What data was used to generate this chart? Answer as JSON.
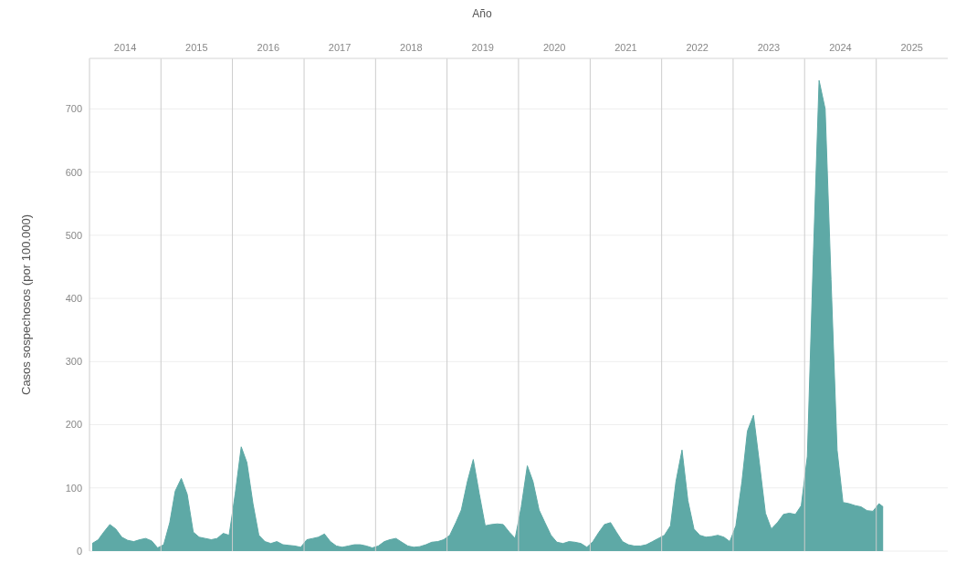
{
  "chart_data": {
    "type": "area",
    "xlabel": "Año",
    "ylabel": "Casos sospechosos (por 100.000)",
    "x": [
      "2014-01-15",
      "2014-02-15",
      "2014-03-15",
      "2014-04-15",
      "2014-05-15",
      "2014-06-15",
      "2014-07-15",
      "2014-08-15",
      "2014-09-15",
      "2014-10-15",
      "2014-11-15",
      "2014-12-15",
      "2015-01-15",
      "2015-02-15",
      "2015-03-15",
      "2015-04-15",
      "2015-05-15",
      "2015-06-15",
      "2015-07-15",
      "2015-08-15",
      "2015-09-15",
      "2015-10-15",
      "2015-11-15",
      "2015-12-15",
      "2016-01-15",
      "2016-02-15",
      "2016-03-15",
      "2016-04-15",
      "2016-05-15",
      "2016-06-15",
      "2016-07-15",
      "2016-08-15",
      "2016-09-15",
      "2016-10-15",
      "2016-11-15",
      "2016-12-15",
      "2017-01-15",
      "2017-02-15",
      "2017-03-15",
      "2017-04-15",
      "2017-05-15",
      "2017-06-15",
      "2017-07-15",
      "2017-08-15",
      "2017-09-15",
      "2017-10-15",
      "2017-11-15",
      "2017-12-15",
      "2018-01-15",
      "2018-02-15",
      "2018-03-15",
      "2018-04-15",
      "2018-05-15",
      "2018-06-15",
      "2018-07-15",
      "2018-08-15",
      "2018-09-15",
      "2018-10-15",
      "2018-11-15",
      "2018-12-15",
      "2019-01-15",
      "2019-02-15",
      "2019-03-15",
      "2019-04-15",
      "2019-05-15",
      "2019-06-15",
      "2019-07-15",
      "2019-08-15",
      "2019-09-15",
      "2019-10-15",
      "2019-11-15",
      "2019-12-15",
      "2020-01-15",
      "2020-02-15",
      "2020-03-15",
      "2020-04-15",
      "2020-05-15",
      "2020-06-15",
      "2020-07-15",
      "2020-08-15",
      "2020-09-15",
      "2020-10-15",
      "2020-11-15",
      "2020-12-15",
      "2021-01-15",
      "2021-02-15",
      "2021-03-15",
      "2021-04-15",
      "2021-05-15",
      "2021-06-15",
      "2021-07-15",
      "2021-08-15",
      "2021-09-15",
      "2021-10-15",
      "2021-11-15",
      "2021-12-15",
      "2022-01-15",
      "2022-02-15",
      "2022-03-15",
      "2022-04-15",
      "2022-05-15",
      "2022-06-15",
      "2022-07-15",
      "2022-08-15",
      "2022-09-15",
      "2022-10-15",
      "2022-11-15",
      "2022-12-15",
      "2023-01-15",
      "2023-02-15",
      "2023-03-15",
      "2023-04-15",
      "2023-05-15",
      "2023-06-15",
      "2023-07-15",
      "2023-08-15",
      "2023-09-15",
      "2023-10-15",
      "2023-11-15",
      "2023-12-15",
      "2024-01-15",
      "2024-02-15",
      "2024-03-15",
      "2024-04-15",
      "2024-05-15",
      "2024-06-15",
      "2024-07-15",
      "2024-08-15",
      "2024-09-15",
      "2024-10-15",
      "2024-11-15",
      "2024-12-15",
      "2025-01-15",
      "2025-02-05"
    ],
    "series": [
      {
        "color": "#5ea9a6",
        "values": [
          12,
          18,
          30,
          42,
          35,
          22,
          17,
          15,
          18,
          20,
          16,
          5,
          10,
          45,
          95,
          115,
          90,
          30,
          22,
          20,
          18,
          20,
          28,
          25,
          90,
          165,
          140,
          75,
          25,
          15,
          12,
          15,
          10,
          9,
          8,
          6,
          18,
          20,
          22,
          27,
          15,
          8,
          6,
          8,
          10,
          10,
          8,
          5,
          8,
          15,
          18,
          20,
          14,
          8,
          6,
          7,
          10,
          14,
          15,
          18,
          25,
          45,
          65,
          110,
          145,
          90,
          40,
          42,
          43,
          42,
          30,
          20,
          70,
          135,
          110,
          65,
          45,
          25,
          14,
          12,
          15,
          14,
          12,
          6,
          15,
          30,
          42,
          45,
          30,
          15,
          10,
          8,
          8,
          10,
          15,
          20,
          25,
          40,
          110,
          160,
          80,
          35,
          25,
          22,
          23,
          25,
          22,
          15,
          40,
          110,
          190,
          215,
          140,
          60,
          35,
          45,
          58,
          60,
          58,
          72,
          150,
          470,
          745,
          700,
          430,
          160,
          77,
          75,
          72,
          70,
          64,
          63,
          75,
          70
        ]
      }
    ],
    "xlim": [
      "2014-01-01",
      "2026-01-01"
    ],
    "xticks": [
      {
        "value": "2014-07-02",
        "label": "2014"
      },
      {
        "value": "2015-07-02",
        "label": "2015"
      },
      {
        "value": "2016-07-02",
        "label": "2016"
      },
      {
        "value": "2017-07-02",
        "label": "2017"
      },
      {
        "value": "2018-07-02",
        "label": "2018"
      },
      {
        "value": "2019-07-02",
        "label": "2019"
      },
      {
        "value": "2020-07-02",
        "label": "2020"
      },
      {
        "value": "2021-07-02",
        "label": "2021"
      },
      {
        "value": "2022-07-02",
        "label": "2022"
      },
      {
        "value": "2023-07-02",
        "label": "2023"
      },
      {
        "value": "2024-07-02",
        "label": "2024"
      },
      {
        "value": "2025-07-02",
        "label": "2025"
      }
    ],
    "ylim": [
      0,
      780
    ],
    "yticks": [
      0,
      100,
      200,
      300,
      400,
      500,
      600,
      700
    ],
    "grid": "y",
    "ref_lines": [
      {
        "axis": "x",
        "value": "2014-01-01",
        "color": "#cccccc"
      },
      {
        "axis": "x",
        "value": "2015-01-01",
        "color": "#cccccc"
      },
      {
        "axis": "x",
        "value": "2016-01-01",
        "color": "#cccccc"
      },
      {
        "axis": "x",
        "value": "2017-01-01",
        "color": "#cccccc"
      },
      {
        "axis": "x",
        "value": "2018-01-01",
        "color": "#cccccc"
      },
      {
        "axis": "x",
        "value": "2019-01-01",
        "color": "#cccccc"
      },
      {
        "axis": "x",
        "value": "2020-01-01",
        "color": "#cccccc"
      },
      {
        "axis": "x",
        "value": "2021-01-01",
        "color": "#cccccc"
      },
      {
        "axis": "x",
        "value": "2022-01-01",
        "color": "#cccccc"
      },
      {
        "axis": "x",
        "value": "2023-01-01",
        "color": "#cccccc"
      },
      {
        "axis": "x",
        "value": "2024-01-01",
        "color": "#cccccc"
      },
      {
        "axis": "x",
        "value": "2025-01-01",
        "color": "#cccccc"
      }
    ]
  }
}
